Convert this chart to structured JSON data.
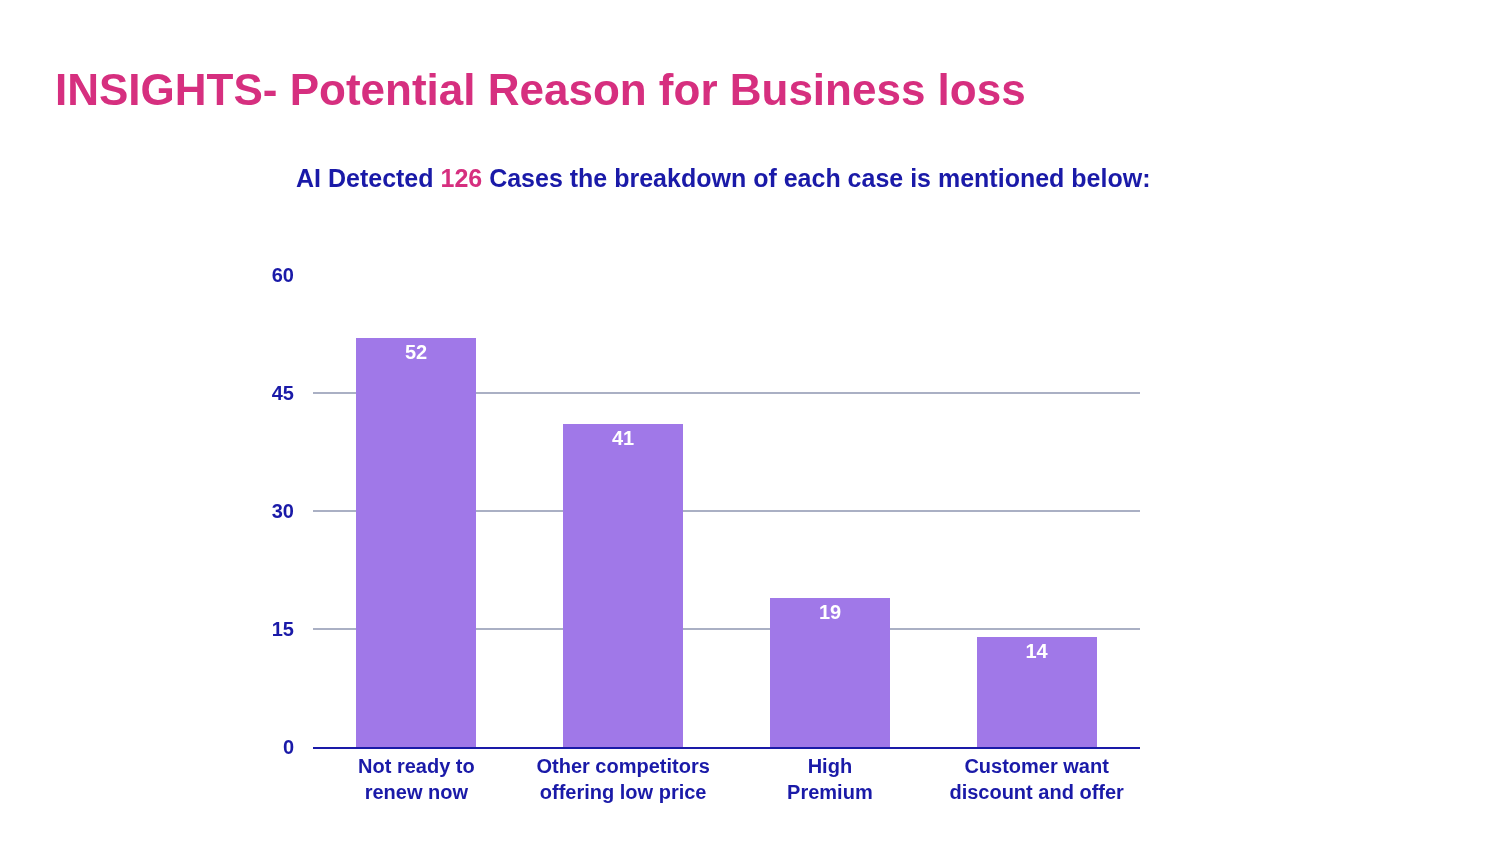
{
  "chart_data": {
    "type": "bar",
    "title": "INSIGHTS- Potential Reason for Business loss",
    "subtitle": "AI Detected 126 Cases the breakdown of each case is mentioned below:",
    "categories": [
      "Not ready to renew now",
      "Other competitors offering low price",
      "High Premium",
      "Customer want discount and offer"
    ],
    "values": [
      52,
      41,
      19,
      14
    ],
    "color": "#a078e8",
    "ylim": [
      0,
      60
    ],
    "yticks": [
      0,
      15,
      30,
      45,
      60
    ],
    "grid": "y",
    "data_labels": true
  }
}
